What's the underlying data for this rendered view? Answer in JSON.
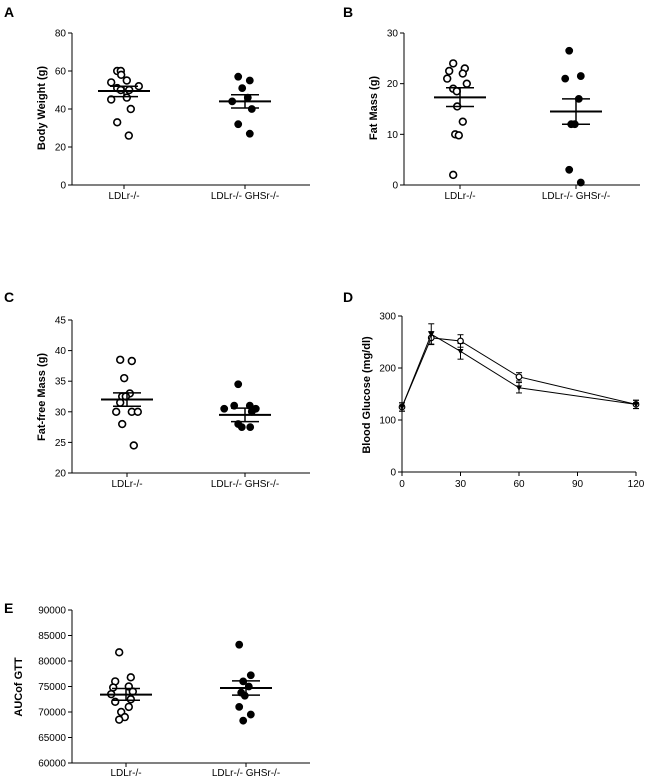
{
  "chart_data": [
    {
      "panel": "A",
      "type": "scatter",
      "ylabel": "Body Weight (g)",
      "ylim": [
        0,
        80
      ],
      "yticks": [
        0,
        20,
        40,
        60,
        80
      ],
      "categories": [
        "LDLr-/-",
        "LDLr-/- GHSr-/-"
      ],
      "series": [
        {
          "name": "LDLr-/-",
          "marker": "open-circle",
          "mean": 49.5,
          "sem_low": 46.5,
          "sem_high": 52,
          "values": [
            60,
            60,
            58,
            55,
            54,
            52,
            51,
            50,
            50,
            46,
            45,
            40,
            33,
            26
          ]
        },
        {
          "name": "LDLr-/- GHSr-/-",
          "marker": "filled-circle",
          "mean": 44,
          "sem_low": 40.5,
          "sem_high": 47.5,
          "values": [
            57,
            55,
            51,
            46,
            44,
            40,
            32,
            27
          ]
        }
      ]
    },
    {
      "panel": "B",
      "type": "scatter",
      "ylabel": "Fat Mass (g)",
      "ylim": [
        0,
        30
      ],
      "yticks": [
        0,
        10,
        20,
        30
      ],
      "categories": [
        "LDLr-/-",
        "LDLr-/- GHSr-/-"
      ],
      "series": [
        {
          "name": "LDLr-/-",
          "marker": "open-circle",
          "mean": 17.3,
          "sem_low": 15.5,
          "sem_high": 19.2,
          "values": [
            24,
            23,
            22.5,
            22,
            21,
            20,
            19,
            18.5,
            15.5,
            12.5,
            10,
            9.8,
            2
          ]
        },
        {
          "name": "LDLr-/- GHSr-/-",
          "marker": "filled-circle",
          "mean": 14.5,
          "sem_low": 12,
          "sem_high": 17,
          "values": [
            26.5,
            21.5,
            21,
            17,
            12,
            12,
            3,
            0.5
          ]
        }
      ]
    },
    {
      "panel": "C",
      "type": "scatter",
      "ylabel": "Fat-free Mass (g)",
      "ylim": [
        20,
        45
      ],
      "yticks": [
        20,
        25,
        30,
        35,
        40,
        45
      ],
      "categories": [
        "LDLr-/-",
        "LDLr-/- GHSr-/-"
      ],
      "series": [
        {
          "name": "LDLr-/-",
          "marker": "open-circle",
          "mean": 32,
          "sem_low": 30.9,
          "sem_high": 33.1,
          "values": [
            38.5,
            38.3,
            35.5,
            33,
            32.5,
            32.5,
            31.5,
            30,
            30,
            30,
            28,
            24.5
          ]
        },
        {
          "name": "LDLr-/- GHSr-/-",
          "marker": "filled-circle",
          "mean": 29.5,
          "sem_low": 28.4,
          "sem_high": 30.6,
          "values": [
            34.5,
            31,
            31,
            30.5,
            30.5,
            30,
            28,
            27.5,
            27.5
          ]
        }
      ]
    },
    {
      "panel": "D",
      "type": "line",
      "xlabel": "",
      "ylabel": "Blood Glucose (mg/dl)",
      "xlim": [
        0,
        120
      ],
      "ylim": [
        0,
        300
      ],
      "xticks": [
        0,
        30,
        60,
        90,
        120
      ],
      "yticks": [
        0,
        100,
        200,
        300
      ],
      "x": [
        0,
        15,
        30,
        60,
        120
      ],
      "series": [
        {
          "name": "LDLr-/-",
          "marker": "open-circle",
          "values": [
            125,
            258,
            252,
            183,
            130
          ],
          "err": [
            8,
            12,
            12,
            8,
            8
          ]
        },
        {
          "name": "LDLr-/- GHSr-/-",
          "marker": "filled-triangle",
          "values": [
            125,
            265,
            232,
            162,
            130
          ],
          "err": [
            8,
            20,
            15,
            10,
            8
          ]
        }
      ]
    },
    {
      "panel": "E",
      "type": "scatter",
      "ylabel": "AUCof GTT",
      "ylim": [
        60000,
        90000
      ],
      "yticks": [
        60000,
        65000,
        70000,
        75000,
        80000,
        85000,
        90000
      ],
      "categories": [
        "LDLr-/-",
        "LDLr-/- GHSr-/-"
      ],
      "series": [
        {
          "name": "LDLr-/-",
          "marker": "open-circle",
          "mean": 73400,
          "sem_low": 72300,
          "sem_high": 74600,
          "values": [
            81700,
            76800,
            76000,
            75000,
            74800,
            74000,
            73500,
            72500,
            72000,
            71000,
            70000,
            69000,
            68500
          ]
        },
        {
          "name": "LDLr-/- GHSr-/-",
          "marker": "filled-circle",
          "mean": 74700,
          "sem_low": 73300,
          "sem_high": 76100,
          "values": [
            83200,
            77200,
            76000,
            75000,
            73800,
            73200,
            71000,
            69500,
            68300
          ]
        }
      ]
    }
  ]
}
